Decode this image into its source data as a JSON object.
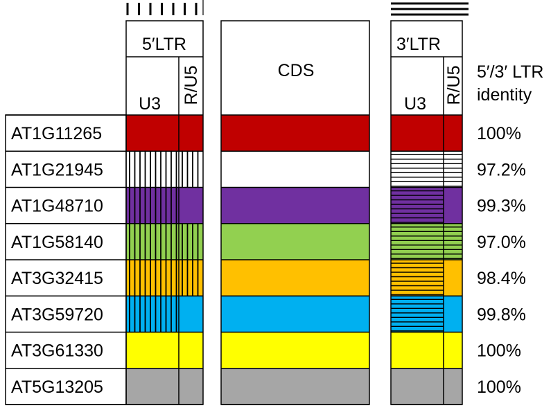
{
  "headers": {
    "ltr5": "5′LTR",
    "ltr3": "3′LTR",
    "cds": "CDS",
    "u3": "U3",
    "ru5": "R/U5",
    "identity_line1": "5′/3′ LTR",
    "identity_line2": "identity"
  },
  "legend_marks": {
    "vertical_stripes_count": 7,
    "horizontal_stripes_count": 3
  },
  "rows": [
    {
      "gene": "AT1G11265",
      "color": "#c00000",
      "u3_5": "solid",
      "ru5_5": "solid",
      "u3_3": "solid",
      "identity": "100%"
    },
    {
      "gene": "AT1G21945",
      "color": "#ffffff",
      "u3_5": "vertical",
      "ru5_5": "vertical",
      "u3_3": "horizontal",
      "ru5_3": "horizontal",
      "identity": "97.2%"
    },
    {
      "gene": "AT1G48710",
      "color": "#7030a0",
      "u3_5": "vertical",
      "ru5_5": "solid",
      "u3_3": "horizontal",
      "identity": "99.3%"
    },
    {
      "gene": "AT1G58140",
      "color": "#92d050",
      "u3_5": "vertical",
      "ru5_5": "vertical",
      "u3_3": "horizontal",
      "ru5_3": "horizontal",
      "identity": "97.0%"
    },
    {
      "gene": "AT3G32415",
      "color": "#ffc000",
      "u3_5": "vertical",
      "ru5_5": "vertical",
      "u3_3": "horizontal",
      "identity": "98.4%"
    },
    {
      "gene": "AT3G59720",
      "color": "#00b0f0",
      "u3_5": "vertical",
      "ru5_5": "solid",
      "u3_3": "horizontal",
      "identity": "99.8%"
    },
    {
      "gene": "AT3G61330",
      "color": "#ffff00",
      "u3_5": "solid",
      "ru5_5": "solid",
      "u3_3": "solid",
      "identity": "100%"
    },
    {
      "gene": "AT5G13205",
      "color": "#a6a6a6",
      "u3_5": "solid",
      "ru5_5": "solid",
      "u3_3": "solid",
      "identity": "100%"
    }
  ]
}
